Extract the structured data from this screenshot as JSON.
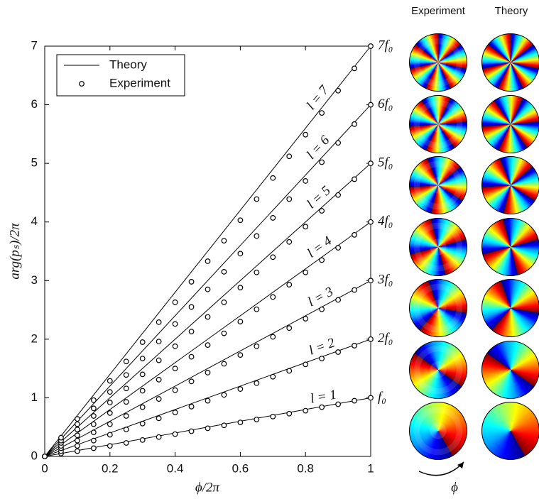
{
  "chart_data": {
    "type": "line",
    "xlabel": "ϕ/2π",
    "ylabel": "arg(pₛ)/2π",
    "xlim": [
      0,
      1
    ],
    "ylim": [
      0,
      7
    ],
    "xticks": [
      0,
      0.2,
      0.4,
      0.6,
      0.8,
      1
    ],
    "yticks": [
      0,
      1,
      2,
      3,
      4,
      5,
      6,
      7
    ],
    "legend": "upper left",
    "series": [
      {
        "name": "Theory",
        "color": "#000000",
        "style": "line",
        "x": [
          0,
          1
        ],
        "lines": [
          {
            "label": "l = 1",
            "end_label": "f₀",
            "values": [
              0,
              1
            ]
          },
          {
            "label": "l = 2",
            "end_label": "2f₀",
            "values": [
              0,
              2
            ]
          },
          {
            "label": "l = 3",
            "end_label": "3f₀",
            "values": [
              0,
              3
            ]
          },
          {
            "label": "l = 4",
            "end_label": "4f₀",
            "values": [
              0,
              4
            ]
          },
          {
            "label": "l = 5",
            "end_label": "5f₀",
            "values": [
              0,
              5
            ]
          },
          {
            "label": "l = 6",
            "end_label": "6f₀",
            "values": [
              0,
              6
            ]
          },
          {
            "label": "l = 7",
            "end_label": "7f₀",
            "values": [
              0,
              7
            ]
          }
        ]
      },
      {
        "name": "Experiment",
        "color": "#000000",
        "style": "marker",
        "x": [
          0,
          0.05,
          0.1,
          0.15,
          0.2,
          0.25,
          0.3,
          0.35,
          0.4,
          0.45,
          0.5,
          0.55,
          0.6,
          0.65,
          0.7,
          0.75,
          0.8,
          0.85,
          0.9,
          0.95,
          1
        ],
        "lines": [
          {
            "values": [
              0,
              0.05,
              0.09,
              0.14,
              0.18,
              0.23,
              0.28,
              0.33,
              0.38,
              0.43,
              0.48,
              0.53,
              0.58,
              0.63,
              0.68,
              0.73,
              0.78,
              0.84,
              0.89,
              0.95,
              1
            ]
          },
          {
            "values": [
              0,
              0.09,
              0.18,
              0.27,
              0.37,
              0.46,
              0.56,
              0.65,
              0.75,
              0.85,
              0.95,
              1.05,
              1.15,
              1.25,
              1.36,
              1.46,
              1.57,
              1.67,
              1.78,
              1.89,
              2
            ]
          },
          {
            "values": [
              0,
              0.14,
              0.27,
              0.41,
              0.55,
              0.69,
              0.84,
              0.98,
              1.13,
              1.28,
              1.43,
              1.58,
              1.73,
              1.88,
              2.04,
              2.19,
              2.35,
              2.51,
              2.67,
              2.84,
              3
            ]
          },
          {
            "values": [
              0,
              0.18,
              0.36,
              0.55,
              0.74,
              0.93,
              1.12,
              1.31,
              1.5,
              1.7,
              1.9,
              2.1,
              2.3,
              2.51,
              2.72,
              2.93,
              3.14,
              3.35,
              3.56,
              3.78,
              4
            ]
          },
          {
            "values": [
              0,
              0.23,
              0.46,
              0.69,
              0.92,
              1.16,
              1.4,
              1.64,
              1.88,
              2.13,
              2.38,
              2.63,
              2.88,
              3.14,
              3.4,
              3.66,
              3.92,
              4.19,
              4.46,
              4.73,
              5
            ]
          },
          {
            "values": [
              0,
              0.27,
              0.55,
              0.82,
              1.1,
              1.39,
              1.67,
              1.96,
              2.26,
              2.55,
              2.85,
              3.15,
              3.46,
              3.76,
              4.07,
              4.39,
              4.7,
              5.02,
              5.35,
              5.67,
              6
            ]
          },
          {
            "values": [
              0,
              0.32,
              0.64,
              0.96,
              1.29,
              1.62,
              1.95,
              2.29,
              2.63,
              2.98,
              3.33,
              3.68,
              4.03,
              4.39,
              4.75,
              5.12,
              5.49,
              5.86,
              6.24,
              6.62,
              7
            ]
          }
        ]
      }
    ]
  },
  "side_panels": {
    "columns": [
      "Experiment",
      "Theory"
    ],
    "arrow_label": "ϕ"
  }
}
